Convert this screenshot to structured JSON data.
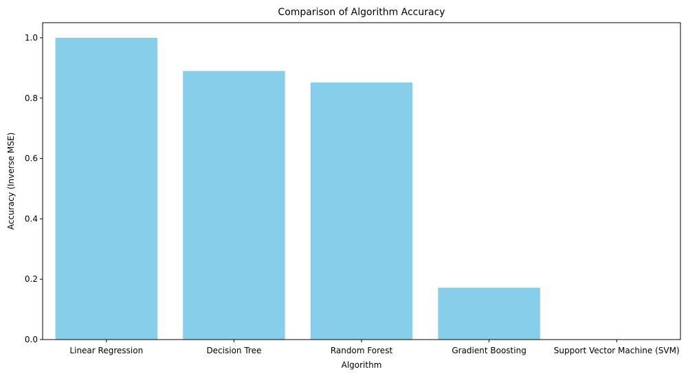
{
  "chart_data": {
    "type": "bar",
    "title": "Comparison of Algorithm Accuracy",
    "xlabel": "Algorithm",
    "ylabel": "Accuracy (Inverse MSE)",
    "categories": [
      "Linear Regression",
      "Decision Tree",
      "Random Forest",
      "Gradient Boosting",
      "Support Vector Machine (SVM)"
    ],
    "values": [
      1.0,
      0.89,
      0.852,
      0.172,
      0.0
    ],
    "ylim": [
      0,
      1.05
    ],
    "yticks": [
      "0.0",
      "0.2",
      "0.4",
      "0.6",
      "0.8",
      "1.0"
    ],
    "bar_color": "#87CEEB",
    "grid": false,
    "legend": "none"
  }
}
